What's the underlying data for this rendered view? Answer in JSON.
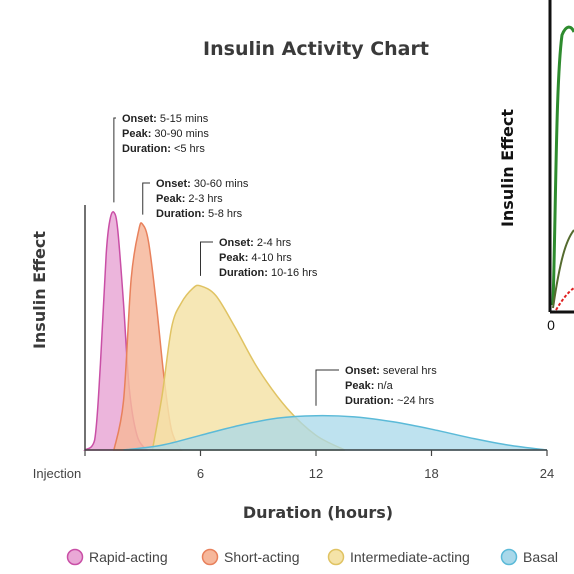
{
  "chart_data": {
    "type": "area",
    "title": "Insulin Activity Chart",
    "xlabel": "Duration (hours)",
    "ylabel": "Insulin Effect",
    "xlim": [
      0,
      24
    ],
    "ylim": [
      0,
      1
    ],
    "x_ticks": [
      {
        "value": 0,
        "label": "Injection"
      },
      {
        "value": 6,
        "label": "6"
      },
      {
        "value": 12,
        "label": "12"
      },
      {
        "value": 18,
        "label": "18"
      },
      {
        "value": 24,
        "label": "24"
      }
    ],
    "series": [
      {
        "name": "Rapid-acting",
        "color": "#e9a8d6",
        "stroke": "#c94fa6",
        "onset_label": "Onset:",
        "onset": "5-15 mins",
        "peak_label": "Peak:",
        "peak": "30-90 mins",
        "duration_label": "Duration:",
        "duration": "<5 hrs",
        "points": [
          [
            0,
            0
          ],
          [
            0.5,
            0.04
          ],
          [
            0.8,
            0.35
          ],
          [
            1.1,
            0.8
          ],
          [
            1.3,
            0.94
          ],
          [
            1.5,
            0.97
          ],
          [
            1.7,
            0.9
          ],
          [
            2.0,
            0.6
          ],
          [
            2.3,
            0.25
          ],
          [
            2.7,
            0.06
          ],
          [
            3.2,
            0
          ]
        ]
      },
      {
        "name": "Short-acting",
        "color": "#f6b79b",
        "stroke": "#e8815c",
        "onset_label": "Onset:",
        "onset": "30-60 mins",
        "peak_label": "Peak:",
        "peak": "2-3 hrs",
        "duration_label": "Duration:",
        "duration": "5-8 hrs",
        "points": [
          [
            1.5,
            0
          ],
          [
            2.0,
            0.2
          ],
          [
            2.4,
            0.7
          ],
          [
            2.8,
            0.9
          ],
          [
            3.0,
            0.92
          ],
          [
            3.3,
            0.85
          ],
          [
            3.7,
            0.6
          ],
          [
            4.1,
            0.3
          ],
          [
            4.5,
            0.08
          ],
          [
            5.0,
            0
          ]
        ]
      },
      {
        "name": "Intermediate-acting",
        "color": "#f5e3a8",
        "stroke": "#e0c363",
        "onset_label": "Onset:",
        "onset": "2-4 hrs",
        "peak_label": "Peak:",
        "peak": "4-10 hrs",
        "duration_label": "Duration:",
        "duration": "10-16 hrs",
        "points": [
          [
            3.5,
            0
          ],
          [
            4.0,
            0.22
          ],
          [
            4.5,
            0.5
          ],
          [
            5.0,
            0.6
          ],
          [
            5.6,
            0.66
          ],
          [
            6.0,
            0.67
          ],
          [
            6.8,
            0.63
          ],
          [
            7.8,
            0.5
          ],
          [
            9.0,
            0.33
          ],
          [
            10.5,
            0.17
          ],
          [
            12.0,
            0.06
          ],
          [
            13.5,
            0
          ]
        ]
      },
      {
        "name": "Basal",
        "color": "#a8d8ea",
        "stroke": "#5bbad8",
        "onset_label": "Onset:",
        "onset": "several hrs",
        "peak_label": "Peak:",
        "peak": "n/a",
        "duration_label": "Duration:",
        "duration": "~24 hrs",
        "points": [
          [
            2,
            0
          ],
          [
            4,
            0.02
          ],
          [
            6,
            0.06
          ],
          [
            8,
            0.1
          ],
          [
            10,
            0.13
          ],
          [
            12,
            0.14
          ],
          [
            14,
            0.135
          ],
          [
            16,
            0.115
          ],
          [
            18,
            0.085
          ],
          [
            20,
            0.05
          ],
          [
            22,
            0.02
          ],
          [
            24,
            0
          ]
        ]
      }
    ],
    "legend_position": "bottom",
    "grid": false
  },
  "inset": {
    "ylabel": "Insulin Effect",
    "x_tick": "0"
  }
}
